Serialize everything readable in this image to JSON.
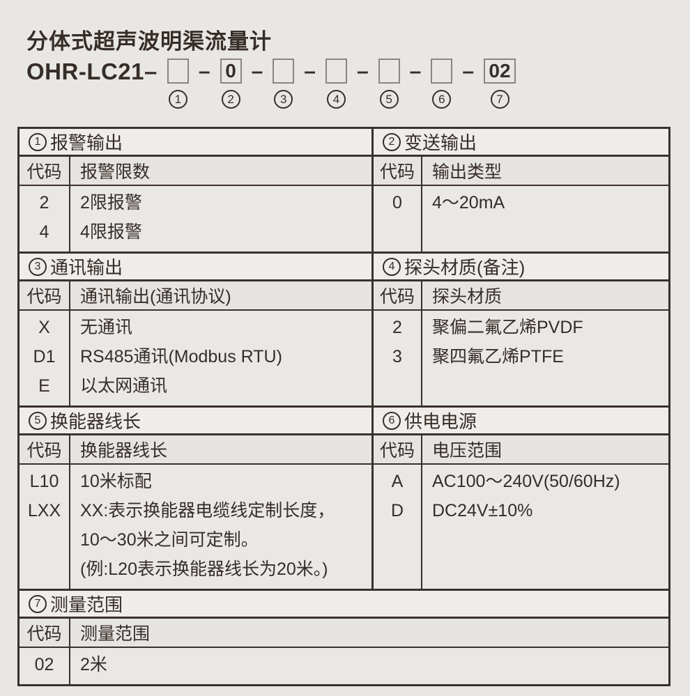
{
  "page": {
    "title": "分体式超声波明渠流量计"
  },
  "model": {
    "prefix": "OHR-LC21–",
    "separator": "–",
    "segments": [
      {
        "marker": "1",
        "value": ""
      },
      {
        "marker": "2",
        "value": "0"
      },
      {
        "marker": "3",
        "value": ""
      },
      {
        "marker": "4",
        "value": ""
      },
      {
        "marker": "5",
        "value": ""
      },
      {
        "marker": "6",
        "value": ""
      },
      {
        "marker": "7",
        "value": "02"
      }
    ]
  },
  "table": {
    "code_header": "代码",
    "sections": [
      {
        "marker": "1",
        "title": "报警输出",
        "value_header": "报警限数",
        "rows": [
          {
            "code": "2",
            "desc": [
              "2限报警"
            ]
          },
          {
            "code": "4",
            "desc": [
              "4限报警"
            ]
          }
        ]
      },
      {
        "marker": "2",
        "title": "变送输出",
        "value_header": "输出类型",
        "rows": [
          {
            "code": "0",
            "desc": [
              "4～20mA"
            ]
          }
        ]
      },
      {
        "marker": "3",
        "title": "通讯输出",
        "value_header": "通讯输出(通讯协议)",
        "rows": [
          {
            "code": "X",
            "desc": [
              "无通讯"
            ]
          },
          {
            "code": "D1",
            "desc": [
              "RS485通讯(Modbus RTU)"
            ]
          },
          {
            "code": "E",
            "desc": [
              "以太网通讯"
            ]
          }
        ]
      },
      {
        "marker": "4",
        "title": "探头材质(备注)",
        "value_header": "探头材质",
        "rows": [
          {
            "code": "2",
            "desc": [
              "聚偏二氟乙烯PVDF"
            ]
          },
          {
            "code": "3",
            "desc": [
              "聚四氟乙烯PTFE"
            ]
          }
        ]
      },
      {
        "marker": "5",
        "title": "换能器线长",
        "value_header": "换能器线长",
        "rows": [
          {
            "code": "L10",
            "desc": [
              "10米标配"
            ]
          },
          {
            "code": "LXX",
            "desc": [
              "XX:表示换能器电缆线定制长度，",
              "10～30米之间可定制。",
              "(例:L20表示换能器线长为20米。)"
            ]
          }
        ]
      },
      {
        "marker": "6",
        "title": "供电电源",
        "value_header": "电压范围",
        "rows": [
          {
            "code": "A",
            "desc": [
              "AC100～240V(50/60Hz)"
            ]
          },
          {
            "code": "D",
            "desc": [
              "DC24V±10%"
            ]
          }
        ]
      },
      {
        "marker": "7",
        "title": "测量范围",
        "value_header": "测量范围",
        "rows": [
          {
            "code": "02",
            "desc": [
              "2米"
            ]
          }
        ]
      }
    ]
  },
  "colors": {
    "ink": "#362d29",
    "border": "#3a312d",
    "background": "#e9e7e4",
    "box_border": "#8b8580"
  }
}
